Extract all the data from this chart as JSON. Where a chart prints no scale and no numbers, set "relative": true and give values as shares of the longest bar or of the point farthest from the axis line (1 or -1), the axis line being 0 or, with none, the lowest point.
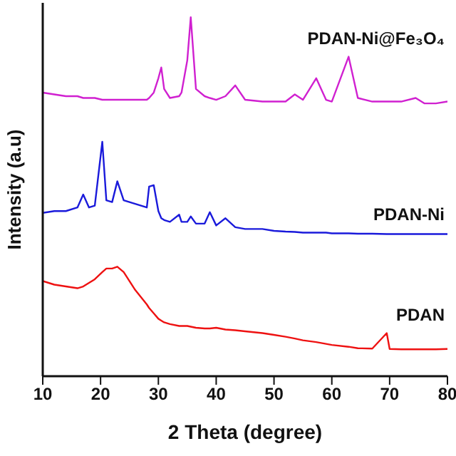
{
  "chart_data": {
    "type": "line",
    "relative": true,
    "xlabel": "2 Theta (degree)",
    "ylabel": "Intensity (a.u)",
    "xlim": [
      10,
      80
    ],
    "xticks": [
      10,
      20,
      30,
      40,
      50,
      60,
      70,
      80
    ],
    "marker": "none",
    "x": [
      10,
      12,
      14,
      16,
      17,
      18,
      19,
      20.3,
      21,
      22,
      22.9,
      24,
      26,
      28,
      28.4,
      29.2,
      30,
      30.5,
      31,
      32,
      33.6,
      34,
      35,
      35.6,
      36.5,
      38,
      38.9,
      40,
      41.6,
      43.3,
      45,
      48,
      50,
      52,
      53.6,
      55,
      57.3,
      59,
      60,
      62.9,
      64.5,
      67,
      69.5,
      70,
      72,
      74.5,
      76,
      78,
      80
    ],
    "series": [
      {
        "name": "PDAN-Ni@Fe₃O₄",
        "color": "#d020d0",
        "values": [
          0.79,
          0.785,
          0.78,
          0.78,
          0.775,
          0.775,
          0.775,
          0.77,
          0.77,
          0.77,
          0.77,
          0.77,
          0.77,
          0.77,
          0.775,
          0.79,
          0.83,
          0.86,
          0.8,
          0.775,
          0.78,
          0.79,
          0.88,
          1,
          0.8,
          0.78,
          0.775,
          0.77,
          0.78,
          0.81,
          0.77,
          0.765,
          0.765,
          0.765,
          0.785,
          0.77,
          0.83,
          0.77,
          0.765,
          0.89,
          0.775,
          0.765,
          0.765,
          0.765,
          0.765,
          0.775,
          0.76,
          0.76,
          0.765
        ]
      },
      {
        "name": "PDAN-Ni",
        "color": "#1a1adb",
        "values": [
          0.455,
          0.46,
          0.46,
          0.47,
          0.506,
          0.47,
          0.475,
          0.653,
          0.49,
          0.485,
          0.543,
          0.49,
          0.48,
          0.47,
          0.528,
          0.532,
          0.46,
          0.44,
          0.435,
          0.43,
          0.45,
          0.43,
          0.43,
          0.445,
          0.425,
          0.425,
          0.457,
          0.42,
          0.44,
          0.415,
          0.41,
          0.41,
          0.405,
          0.403,
          0.402,
          0.4,
          0.4,
          0.4,
          0.398,
          0.398,
          0.397,
          0.397,
          0.396,
          0.396,
          0.396,
          0.396,
          0.396,
          0.396,
          0.396
        ]
      },
      {
        "name": "PDAN",
        "color": "#ee1111",
        "values": [
          0.265,
          0.255,
          0.25,
          0.245,
          0.25,
          0.26,
          0.27,
          0.29,
          0.3,
          0.3,
          0.305,
          0.29,
          0.24,
          0.2,
          0.19,
          0.175,
          0.16,
          0.155,
          0.15,
          0.145,
          0.14,
          0.14,
          0.14,
          0.138,
          0.135,
          0.133,
          0.133,
          0.135,
          0.13,
          0.128,
          0.125,
          0.12,
          0.115,
          0.11,
          0.105,
          0.1,
          0.095,
          0.09,
          0.087,
          0.082,
          0.078,
          0.077,
          0.12,
          0.076,
          0.075,
          0.075,
          0.075,
          0.075,
          0.076
        ]
      }
    ]
  }
}
